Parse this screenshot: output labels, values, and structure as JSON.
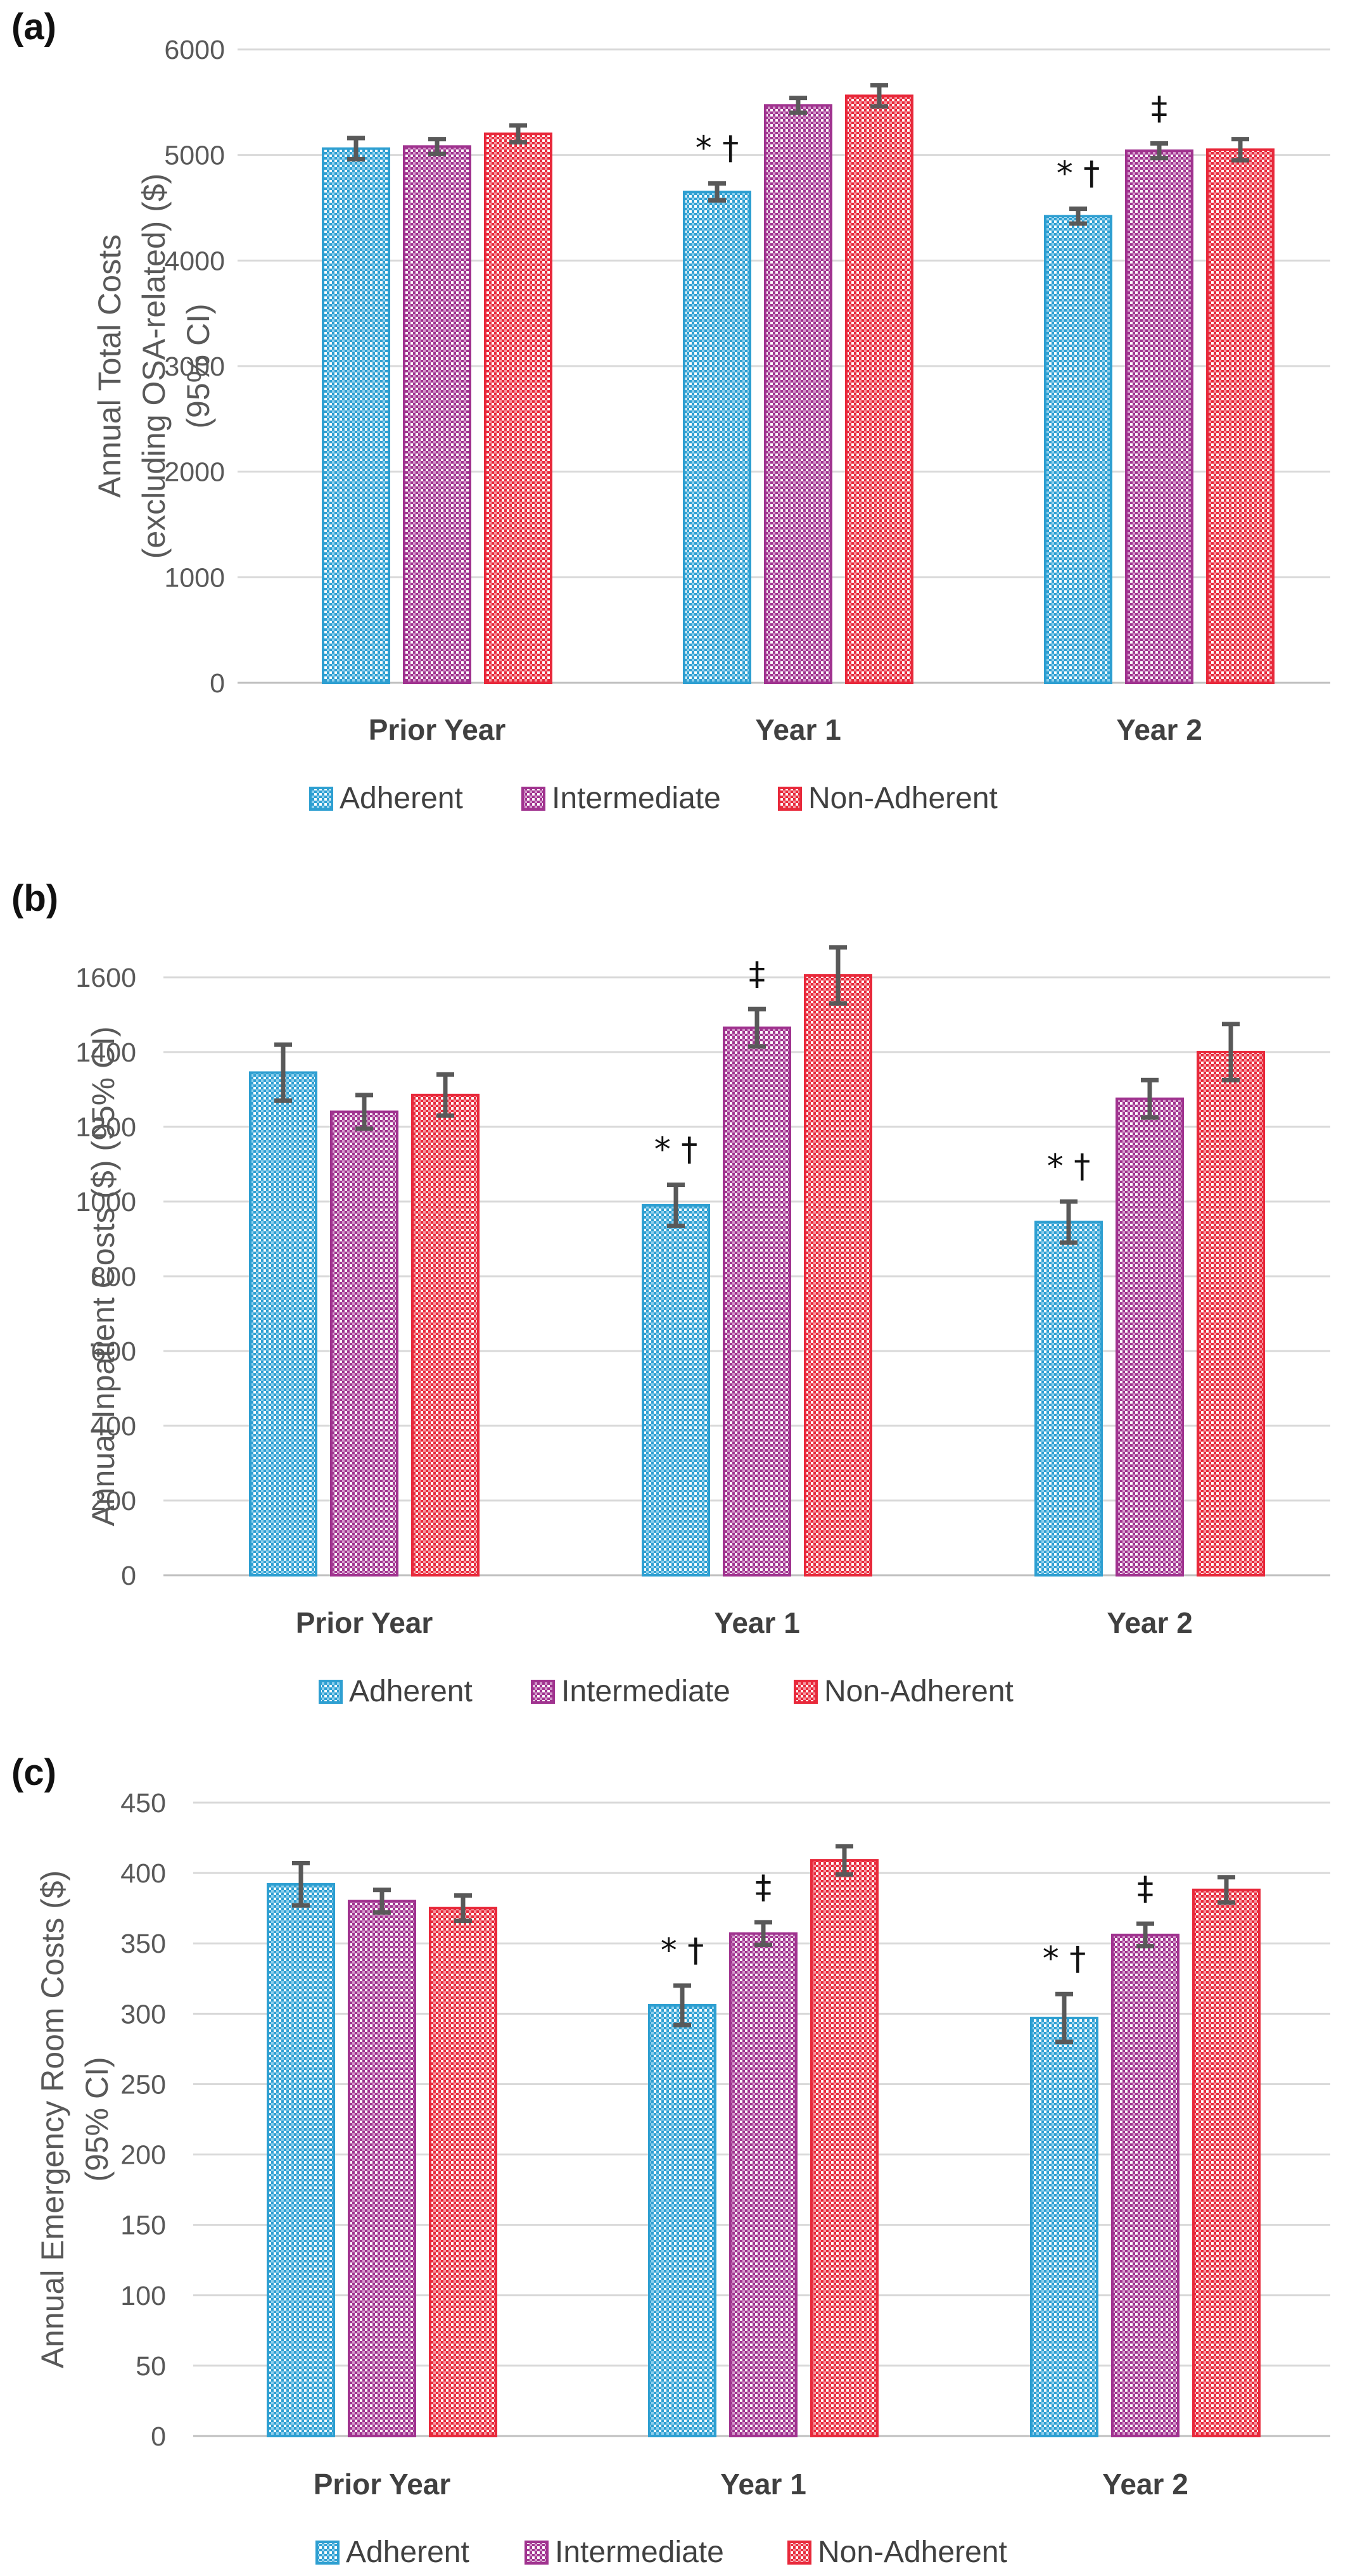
{
  "colors": {
    "Adherent": "#2e9fd1",
    "Intermediate": "#a0338f",
    "Non-Adherent": "#e8293b",
    "error_bar": "#595959",
    "grid": "#d9d9d9"
  },
  "chart_data": [
    {
      "type": "bar",
      "panel_label": "(a)",
      "title": "",
      "ylabel": "Annual Total Costs (excluding OSA-related) ($) (95% CI)",
      "ylabel_lines": [
        "Annual Total Costs",
        "(excluding OSA-related) ($)",
        "(95% CI)"
      ],
      "xlabel": "",
      "ylim": [
        0,
        6000
      ],
      "yticks": [
        0,
        1000,
        2000,
        3000,
        4000,
        5000,
        6000
      ],
      "categories": [
        "Prior Year",
        "Year 1",
        "Year 2"
      ],
      "series": [
        {
          "name": "Adherent",
          "values": [
            5060,
            4650,
            4420
          ],
          "ci_low": [
            4960,
            4570,
            4350
          ],
          "ci_high": [
            5160,
            4730,
            4490
          ]
        },
        {
          "name": "Intermediate",
          "values": [
            5080,
            5470,
            5040
          ],
          "ci_low": [
            5010,
            5400,
            4970
          ],
          "ci_high": [
            5150,
            5540,
            5110
          ]
        },
        {
          "name": "Non-Adherent",
          "values": [
            5200,
            5560,
            5050
          ],
          "ci_low": [
            5120,
            5460,
            4950
          ],
          "ci_high": [
            5280,
            5660,
            5150
          ]
        }
      ],
      "annotations": [
        {
          "category": "Year 1",
          "series": "Adherent",
          "text": "* †"
        },
        {
          "category": "Year 2",
          "series": "Adherent",
          "text": "* †"
        },
        {
          "category": "Year 2",
          "series": "Intermediate",
          "text": "‡"
        }
      ],
      "legend": {
        "position": "bottom",
        "entries": [
          "Adherent",
          "Intermediate",
          "Non-Adherent"
        ]
      },
      "grid": true
    },
    {
      "type": "bar",
      "panel_label": "(b)",
      "title": "",
      "ylabel": "Annual Inpatient Costs ($) (95% CI)",
      "ylabel_lines": [
        "Annual Inpatient Costs ($) (95% CI)"
      ],
      "xlabel": "",
      "ylim": [
        0,
        1600
      ],
      "yticks": [
        0,
        200,
        400,
        600,
        800,
        1000,
        1200,
        1400,
        1600
      ],
      "categories": [
        "Prior Year",
        "Year 1",
        "Year 2"
      ],
      "series": [
        {
          "name": "Adherent",
          "values": [
            1345,
            990,
            945
          ],
          "ci_low": [
            1270,
            935,
            890
          ],
          "ci_high": [
            1420,
            1045,
            1000
          ]
        },
        {
          "name": "Intermediate",
          "values": [
            1240,
            1465,
            1275
          ],
          "ci_low": [
            1195,
            1415,
            1225
          ],
          "ci_high": [
            1285,
            1515,
            1325
          ]
        },
        {
          "name": "Non-Adherent",
          "values": [
            1285,
            1605,
            1400
          ],
          "ci_low": [
            1230,
            1530,
            1325
          ],
          "ci_high": [
            1340,
            1680,
            1475
          ]
        }
      ],
      "annotations": [
        {
          "category": "Year 1",
          "series": "Adherent",
          "text": "* †"
        },
        {
          "category": "Year 1",
          "series": "Intermediate",
          "text": "‡"
        },
        {
          "category": "Year 2",
          "series": "Adherent",
          "text": "* †"
        }
      ],
      "legend": {
        "position": "bottom",
        "entries": [
          "Adherent",
          "Intermediate",
          "Non-Adherent"
        ]
      },
      "grid": true
    },
    {
      "type": "bar",
      "panel_label": "(c)",
      "title": "",
      "ylabel": "Annual Emergency Room Costs ($) (95% CI)",
      "ylabel_lines": [
        "Annual Emergency Room Costs ($)",
        "(95% CI)"
      ],
      "xlabel": "",
      "ylim": [
        0,
        450
      ],
      "yticks": [
        0,
        50,
        100,
        150,
        200,
        250,
        300,
        350,
        400,
        450
      ],
      "categories": [
        "Prior Year",
        "Year 1",
        "Year 2"
      ],
      "series": [
        {
          "name": "Adherent",
          "values": [
            392,
            306,
            297
          ],
          "ci_low": [
            377,
            292,
            280
          ],
          "ci_high": [
            407,
            320,
            314
          ]
        },
        {
          "name": "Intermediate",
          "values": [
            380,
            357,
            356
          ],
          "ci_low": [
            372,
            349,
            348
          ],
          "ci_high": [
            388,
            365,
            364
          ]
        },
        {
          "name": "Non-Adherent",
          "values": [
            375,
            409,
            388
          ],
          "ci_low": [
            366,
            399,
            379
          ],
          "ci_high": [
            384,
            419,
            397
          ]
        }
      ],
      "annotations": [
        {
          "category": "Year 1",
          "series": "Adherent",
          "text": "* †"
        },
        {
          "category": "Year 1",
          "series": "Intermediate",
          "text": "‡"
        },
        {
          "category": "Year 2",
          "series": "Adherent",
          "text": "* †"
        },
        {
          "category": "Year 2",
          "series": "Intermediate",
          "text": "‡"
        }
      ],
      "legend": {
        "position": "bottom",
        "entries": [
          "Adherent",
          "Intermediate",
          "Non-Adherent"
        ]
      },
      "grid": true
    }
  ]
}
